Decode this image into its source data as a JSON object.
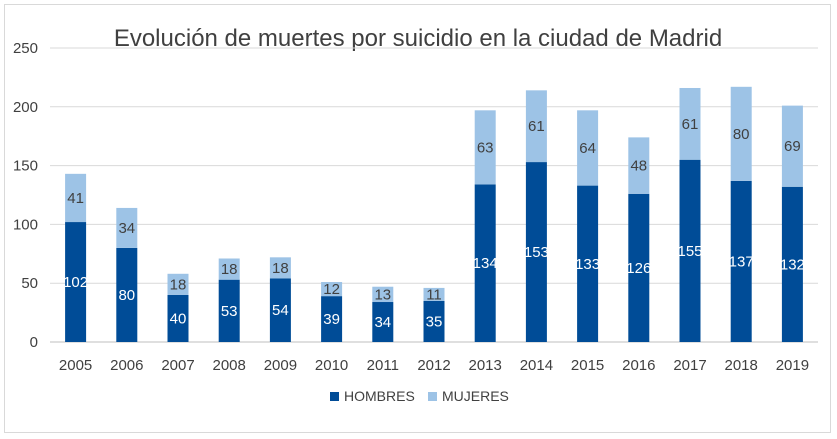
{
  "chart_data": {
    "type": "bar",
    "stacked": true,
    "title": "Evolución de muertes por suicidio en la ciudad de Madrid",
    "xlabel": "",
    "ylabel": "",
    "ylim": [
      0,
      250
    ],
    "yticks": [
      0,
      50,
      100,
      150,
      200,
      250
    ],
    "grid": true,
    "legend_position": "bottom",
    "categories": [
      "2005",
      "2006",
      "2007",
      "2008",
      "2009",
      "2010",
      "2011",
      "2012",
      "2013",
      "2014",
      "2015",
      "2016",
      "2017",
      "2018",
      "2019"
    ],
    "series": [
      {
        "name": "HOMBRES",
        "color": "#004c97",
        "values": [
          102,
          80,
          40,
          53,
          54,
          39,
          34,
          35,
          134,
          153,
          133,
          126,
          155,
          137,
          132
        ]
      },
      {
        "name": "MUJERES",
        "color": "#9dc3e6",
        "values": [
          41,
          34,
          18,
          18,
          18,
          12,
          13,
          11,
          63,
          61,
          64,
          48,
          61,
          80,
          69
        ]
      }
    ]
  }
}
